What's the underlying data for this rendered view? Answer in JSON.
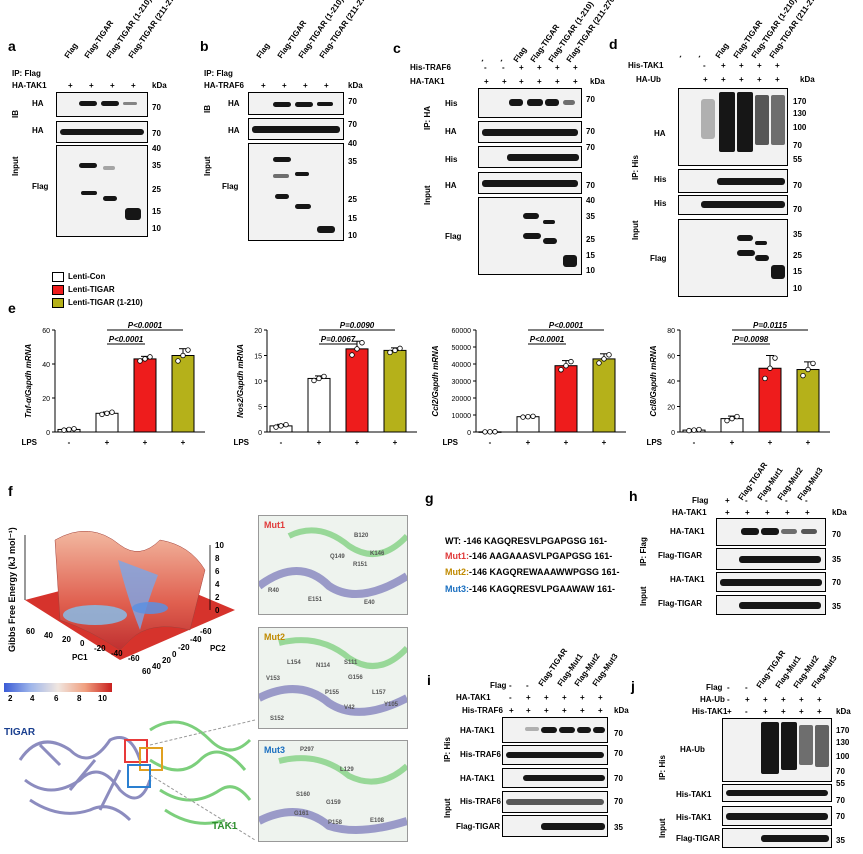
{
  "panels": {
    "a": {
      "letter": "a",
      "ip": "IP: Flag",
      "row": "HA-TAK1",
      "cols": [
        "Flag",
        "Flag-TIGAR",
        "Flag-TIGAR (1-210)",
        "Flag-TIGAR (211-270)"
      ],
      "signs": [
        "+",
        "+",
        "+",
        "+"
      ],
      "ib": "IB",
      "input": "Input",
      "blot_labels": [
        "HA",
        "HA",
        "Flag"
      ],
      "kda": "kDa",
      "markers": [
        "70",
        "70",
        "40",
        "35",
        "25",
        "15",
        "10"
      ]
    },
    "b": {
      "letter": "b",
      "ip": "IP: Flag",
      "row": "HA-TRAF6",
      "cols": [
        "Flag",
        "Flag-TIGAR",
        "Flag-TIGAR (1-210)",
        "Flag-TIGAR (211-270)"
      ],
      "signs": [
        "+",
        "+",
        "+",
        "+"
      ],
      "ib": "IB",
      "input": "Input",
      "blot_labels": [
        "HA",
        "HA",
        "Flag"
      ],
      "kda": "kDa",
      "markers": [
        "70",
        "70",
        "40",
        "35",
        "25",
        "15",
        "10"
      ]
    },
    "c": {
      "letter": "c",
      "rows": [
        "His-TRAF6",
        "HA-TAK1"
      ],
      "row1": [
        "-",
        "-",
        "+",
        "+",
        "+",
        "+"
      ],
      "row2": [
        "+",
        "+",
        "+",
        "+",
        "+",
        "+"
      ],
      "cols": [
        "-",
        "-",
        "Flag",
        "Flag-TIGAR",
        "Flag-TIGAR (1-210)",
        "Flag-TIGAR (211-270)"
      ],
      "ip": "IP: HA",
      "input": "Input",
      "blot_labels": [
        "His",
        "HA",
        "His",
        "HA",
        "Flag"
      ],
      "kda": "kDa",
      "markers": [
        "70",
        "70",
        "70",
        "70",
        "40",
        "35",
        "25",
        "15",
        "10"
      ]
    },
    "d": {
      "letter": "d",
      "rows": [
        "His-TAK1",
        "HA-Ub"
      ],
      "row1": [
        "-",
        "+",
        "+",
        "+",
        "+"
      ],
      "row2": [
        "+",
        "+",
        "+",
        "+",
        "+"
      ],
      "cols": [
        "-",
        "-",
        "Flag",
        "Flag-TIGAR",
        "Flag-TIGAR (1-210)",
        "Flag-TIGAR (211-270)"
      ],
      "ip": "IP: His",
      "input": "Input",
      "blot_labels": [
        "HA",
        "His",
        "His",
        "Flag"
      ],
      "kda": "kDa",
      "markers": [
        "170",
        "130",
        "100",
        "70",
        "55",
        "70",
        "70",
        "35",
        "25",
        "15",
        "10"
      ]
    },
    "e": {
      "letter": "e",
      "legend": [
        "Lenti-Con",
        "Lenti-TIGAR",
        "Lenti-TIGAR (1-210)"
      ],
      "lps_label": "LPS",
      "lps": [
        "-",
        "-",
        "-",
        "+",
        "+",
        "+"
      ]
    },
    "f": {
      "letter": "f",
      "zlabel": "Gibbs Free Energy (kJ mol⁻¹)",
      "pc1": "PC1",
      "pc2": "PC2",
      "zticks": [
        "10",
        "8",
        "6",
        "4",
        "2",
        "0"
      ],
      "pc1ticks": [
        "60",
        "40",
        "20",
        "0",
        "-20",
        "-40",
        "-60"
      ],
      "pc2ticks": [
        "-60",
        "-40",
        "-20",
        "0",
        "20",
        "40",
        "60"
      ],
      "colorbar": [
        "2",
        "4",
        "6",
        "8",
        "10"
      ],
      "tigar": "TIGAR",
      "tak1": "TAK1",
      "mut1": "Mut1",
      "mut2": "Mut2",
      "mut3": "Mut3",
      "mut1_res": [
        "B120",
        "Q149",
        "K146",
        "R151",
        "R40",
        "E151",
        "E40"
      ],
      "mut2_res": [
        "L154",
        "N114",
        "S111",
        "G156",
        "V153",
        "P155",
        "L157",
        "S152",
        "V42",
        "Y105"
      ],
      "mut3_res": [
        "P297",
        "L129",
        "S160",
        "G159",
        "G161",
        "P158",
        "E108"
      ]
    },
    "g": {
      "letter": "g",
      "rows": [
        {
          "name": "WT:",
          "pre": " -146 ",
          "seq": "KAGQRESVLPGAPGSG",
          "post": " 161-"
        },
        {
          "name": "Mut1:",
          "pre": "-146 ",
          "seq": "AAGAAASVLPGAPGSG",
          "post": " 161-"
        },
        {
          "name": "Mut2:",
          "pre": "-146 ",
          "seq": "KAGQREWAAAWWPGSG",
          "post": " 161-"
        },
        {
          "name": "Mut3:",
          "pre": "-146 ",
          "seq": "KAGQRESVLPGAAWAW",
          "post": " 161-"
        }
      ]
    },
    "h": {
      "letter": "h",
      "rows": [
        "Flag",
        "HA-TAK1"
      ],
      "row1": [
        "+",
        "-",
        "-",
        "-",
        "-"
      ],
      "row2": [
        "+",
        "+",
        "+",
        "+",
        "+"
      ],
      "cols": [
        "Flag-TIGAR",
        "Flag-Mut1",
        "Flag-Mut2",
        "Flag-Mut3"
      ],
      "ip": "IP: Flag",
      "input": "Input",
      "blot_labels": [
        "HA-TAK1",
        "Flag-TIGAR",
        "HA-TAK1",
        "Flag-TIGAR"
      ],
      "kda": "kDa",
      "markers": [
        "70",
        "35",
        "70",
        "35"
      ]
    },
    "i": {
      "letter": "i",
      "rows": [
        "Flag",
        "HA-TAK1",
        "His-TRAF6"
      ],
      "row1": [
        "-",
        "-",
        "-",
        "-",
        "-",
        "-"
      ],
      "row2": [
        "-",
        "+",
        "+",
        "+",
        "+",
        "+"
      ],
      "row3": [
        "+",
        "+",
        "+",
        "+",
        "+",
        "+"
      ],
      "cols": [
        "Flag-TIGAR",
        "Flag-Mut1",
        "Flag-Mut2",
        "Flag-Mut3"
      ],
      "ip": "IP: His",
      "input": "Input",
      "blot_labels": [
        "HA-TAK1",
        "His-TRAF6",
        "HA-TAK1",
        "His-TRAF6",
        "Flag-TIGAR"
      ],
      "kda": "kDa",
      "markers": [
        "70",
        "70",
        "70",
        "70",
        "35"
      ]
    },
    "j": {
      "letter": "j",
      "rows": [
        "Flag",
        "HA-Ub",
        "His-TAK1"
      ],
      "row1": [
        "-",
        "-",
        "-",
        "-",
        "-",
        "-"
      ],
      "row2": [
        "-",
        "+",
        "+",
        "+",
        "+",
        "+"
      ],
      "row3": [
        "+",
        "-",
        "+",
        "+",
        "+",
        "+"
      ],
      "cols": [
        "Flag-TIGAR",
        "Flag-Mut1",
        "Flag-Mut2",
        "Flag-Mut3"
      ],
      "ip": "IP: His",
      "input": "Input",
      "blot_labels": [
        "HA-Ub",
        "His-TAK1",
        "His-TAK1",
        "Flag-TIGAR"
      ],
      "kda": "kDa",
      "markers": [
        "170",
        "130",
        "100",
        "70",
        "55",
        "70",
        "70",
        "35"
      ]
    }
  },
  "chart_data": [
    {
      "type": "bar",
      "ylabel": "Tnf-α/Gapdh mRNA",
      "categories": [
        "Lenti-Con",
        "Lenti-Con",
        "Lenti-TIGAR",
        "Lenti-TIGAR (1-210)"
      ],
      "lps": [
        "-",
        "+",
        "+",
        "+"
      ],
      "values": [
        1.5,
        11,
        43,
        45
      ],
      "errors": [
        0.5,
        0.8,
        1.5,
        4
      ],
      "ylim": [
        0,
        60
      ],
      "yticks": [
        "0",
        "20",
        "40",
        "60"
      ],
      "pvalues": [
        "P<0.0001",
        "P<0.0001"
      ]
    },
    {
      "type": "bar",
      "ylabel": "Nos2/Gapdh mRNA",
      "categories": [
        "Lenti-Con",
        "Lenti-Con",
        "Lenti-TIGAR",
        "Lenti-TIGAR (1-210)"
      ],
      "lps": [
        "-",
        "+",
        "+",
        "+"
      ],
      "values": [
        1.2,
        10.5,
        16.3,
        16
      ],
      "errors": [
        0.3,
        0.5,
        1.5,
        0.5
      ],
      "ylim": [
        0,
        20
      ],
      "yticks": [
        "0",
        "5",
        "10",
        "15",
        "20"
      ],
      "pvalues": [
        "P=0.0067",
        "P=0.0090"
      ]
    },
    {
      "type": "bar",
      "ylabel": "Ccl2/Gapdh mRNA",
      "categories": [
        "Lenti-Con",
        "Lenti-Con",
        "Lenti-TIGAR",
        "Lenti-TIGAR (1-210)"
      ],
      "lps": [
        "-",
        "+",
        "+",
        "+"
      ],
      "values": [
        100,
        9000,
        39000,
        43000
      ],
      "errors": [
        50,
        300,
        3000,
        3000
      ],
      "ylim": [
        0,
        60000
      ],
      "yticks": [
        "0",
        "10000",
        "20000",
        "30000",
        "40000",
        "50000",
        "60000"
      ],
      "pvalues": [
        "P<0.0001",
        "P<0.0001"
      ]
    },
    {
      "type": "bar",
      "ylabel": "Ccl8/Gapdh mRNA",
      "categories": [
        "Lenti-Con",
        "Lenti-Con",
        "Lenti-TIGAR",
        "Lenti-TIGAR (1-210)"
      ],
      "lps": [
        "-",
        "+",
        "+",
        "+"
      ],
      "values": [
        1.5,
        10.5,
        50,
        49
      ],
      "errors": [
        0.5,
        2,
        10,
        6
      ],
      "ylim": [
        0,
        80
      ],
      "yticks": [
        "0",
        "20",
        "40",
        "60",
        "80"
      ],
      "pvalues": [
        "P=0.0098",
        "P=0.0115"
      ]
    }
  ],
  "colors": {
    "con": "#ffffff",
    "tigar": "#ee1c1c",
    "frag": "#b5b11a"
  }
}
